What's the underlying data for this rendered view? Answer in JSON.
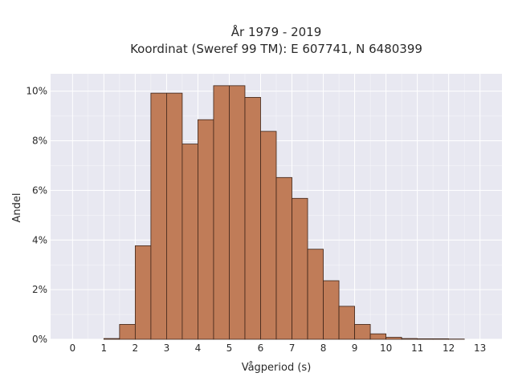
{
  "chart_data": {
    "type": "bar",
    "title_lines": [
      "År 1979 - 2019",
      "Koordinat (Sweref 99 TM): E 607741, N 6480399"
    ],
    "xlabel": "Vågperiod (s)",
    "ylabel": "Andel",
    "x_ticks": [
      0,
      1,
      2,
      3,
      4,
      5,
      6,
      7,
      8,
      9,
      10,
      11,
      12,
      13
    ],
    "y_ticks": [
      0,
      0.02,
      0.04,
      0.06,
      0.08,
      0.1
    ],
    "y_tick_labels": [
      "0%",
      "2%",
      "4%",
      "6%",
      "8%",
      "10%"
    ],
    "xlim": [
      -0.7,
      13.7
    ],
    "ylim": [
      0,
      0.107
    ],
    "bin_width": 0.5,
    "bins": [
      {
        "start": 1.0,
        "value": 0.0003
      },
      {
        "start": 1.5,
        "value": 0.006
      },
      {
        "start": 2.0,
        "value": 0.0377
      },
      {
        "start": 2.5,
        "value": 0.0992
      },
      {
        "start": 3.0,
        "value": 0.0992
      },
      {
        "start": 3.5,
        "value": 0.0787
      },
      {
        "start": 4.0,
        "value": 0.0885
      },
      {
        "start": 4.5,
        "value": 0.1022
      },
      {
        "start": 5.0,
        "value": 0.1022
      },
      {
        "start": 5.5,
        "value": 0.0975
      },
      {
        "start": 6.0,
        "value": 0.0838
      },
      {
        "start": 6.5,
        "value": 0.0652
      },
      {
        "start": 7.0,
        "value": 0.0568
      },
      {
        "start": 7.5,
        "value": 0.0363
      },
      {
        "start": 8.0,
        "value": 0.0236
      },
      {
        "start": 8.5,
        "value": 0.0133
      },
      {
        "start": 9.0,
        "value": 0.006
      },
      {
        "start": 9.5,
        "value": 0.0022
      },
      {
        "start": 10.0,
        "value": 0.0008
      },
      {
        "start": 10.5,
        "value": 0.0003
      },
      {
        "start": 11.0,
        "value": 0.0002
      },
      {
        "start": 11.5,
        "value": 0.0002
      },
      {
        "start": 12.0,
        "value": 0.0001
      }
    ],
    "grid": true,
    "colors": {
      "bar_fill": "#c07c58",
      "bar_stroke": "#3d2418",
      "plot_bg": "#e8e8f1",
      "grid": "#ffffff",
      "text": "#2a2a2a"
    }
  }
}
